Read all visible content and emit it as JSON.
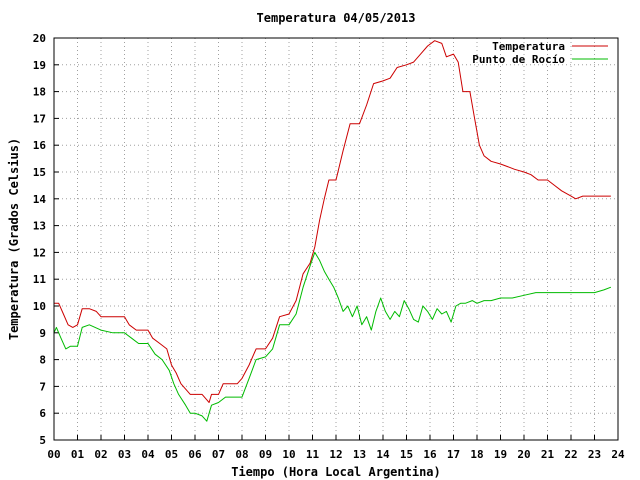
{
  "chart_data": {
    "type": "line",
    "title": "Temperatura 04/05/2013",
    "xlabel": "Tiempo (Hora Local Argentina)",
    "ylabel": "Temperatura (Grados Celsius)",
    "xlim": [
      0,
      24
    ],
    "ylim": [
      5,
      20
    ],
    "grid": true,
    "legend": "top-right",
    "x_ticks": [
      "00",
      "01",
      "02",
      "03",
      "04",
      "05",
      "06",
      "07",
      "08",
      "09",
      "10",
      "11",
      "12",
      "13",
      "14",
      "15",
      "16",
      "17",
      "18",
      "19",
      "20",
      "21",
      "22",
      "23",
      "24"
    ],
    "y_ticks": [
      "5",
      "6",
      "7",
      "8",
      "9",
      "10",
      "11",
      "12",
      "13",
      "14",
      "15",
      "16",
      "17",
      "18",
      "19",
      "20"
    ],
    "series": [
      {
        "name": "Temperatura",
        "color": "#cc0000",
        "points": [
          [
            0.0,
            10.1
          ],
          [
            0.2,
            10.1
          ],
          [
            0.4,
            9.7
          ],
          [
            0.6,
            9.3
          ],
          [
            0.8,
            9.2
          ],
          [
            1.0,
            9.3
          ],
          [
            1.2,
            9.9
          ],
          [
            1.5,
            9.9
          ],
          [
            1.8,
            9.8
          ],
          [
            2.0,
            9.6
          ],
          [
            2.5,
            9.6
          ],
          [
            3.0,
            9.6
          ],
          [
            3.2,
            9.3
          ],
          [
            3.5,
            9.1
          ],
          [
            4.0,
            9.1
          ],
          [
            4.2,
            8.8
          ],
          [
            4.5,
            8.6
          ],
          [
            4.8,
            8.4
          ],
          [
            5.0,
            7.8
          ],
          [
            5.2,
            7.5
          ],
          [
            5.4,
            7.1
          ],
          [
            5.6,
            6.9
          ],
          [
            5.8,
            6.7
          ],
          [
            6.0,
            6.7
          ],
          [
            6.3,
            6.7
          ],
          [
            6.5,
            6.5
          ],
          [
            6.6,
            6.4
          ],
          [
            6.7,
            6.7
          ],
          [
            7.0,
            6.7
          ],
          [
            7.2,
            7.1
          ],
          [
            7.5,
            7.1
          ],
          [
            7.8,
            7.1
          ],
          [
            8.0,
            7.3
          ],
          [
            8.3,
            7.8
          ],
          [
            8.6,
            8.4
          ],
          [
            9.0,
            8.4
          ],
          [
            9.3,
            8.8
          ],
          [
            9.6,
            9.6
          ],
          [
            10.0,
            9.7
          ],
          [
            10.3,
            10.2
          ],
          [
            10.6,
            11.2
          ],
          [
            10.9,
            11.6
          ],
          [
            11.1,
            12.2
          ],
          [
            11.3,
            13.2
          ],
          [
            11.5,
            14.0
          ],
          [
            11.7,
            14.7
          ],
          [
            12.0,
            14.7
          ],
          [
            12.3,
            15.8
          ],
          [
            12.6,
            16.8
          ],
          [
            13.0,
            16.8
          ],
          [
            13.3,
            17.5
          ],
          [
            13.6,
            18.3
          ],
          [
            14.0,
            18.4
          ],
          [
            14.3,
            18.5
          ],
          [
            14.6,
            18.9
          ],
          [
            15.0,
            19.0
          ],
          [
            15.3,
            19.1
          ],
          [
            15.6,
            19.4
          ],
          [
            15.9,
            19.7
          ],
          [
            16.2,
            19.9
          ],
          [
            16.5,
            19.8
          ],
          [
            16.7,
            19.3
          ],
          [
            17.0,
            19.4
          ],
          [
            17.2,
            19.1
          ],
          [
            17.4,
            18.0
          ],
          [
            17.7,
            18.0
          ],
          [
            17.9,
            17.0
          ],
          [
            18.1,
            16.0
          ],
          [
            18.3,
            15.6
          ],
          [
            18.6,
            15.4
          ],
          [
            19.0,
            15.3
          ],
          [
            19.3,
            15.2
          ],
          [
            19.6,
            15.1
          ],
          [
            20.0,
            15.0
          ],
          [
            20.3,
            14.9
          ],
          [
            20.6,
            14.7
          ],
          [
            21.0,
            14.7
          ],
          [
            21.3,
            14.5
          ],
          [
            21.6,
            14.3
          ],
          [
            22.0,
            14.1
          ],
          [
            22.2,
            14.0
          ],
          [
            22.5,
            14.1
          ],
          [
            23.0,
            14.1
          ],
          [
            23.4,
            14.1
          ],
          [
            23.7,
            14.1
          ]
        ]
      },
      {
        "name": "Punto de Rocío",
        "color": "#00bb00",
        "points": [
          [
            0.0,
            9.0
          ],
          [
            0.1,
            9.2
          ],
          [
            0.3,
            8.8
          ],
          [
            0.5,
            8.4
          ],
          [
            0.7,
            8.5
          ],
          [
            1.0,
            8.5
          ],
          [
            1.2,
            9.2
          ],
          [
            1.5,
            9.3
          ],
          [
            2.0,
            9.1
          ],
          [
            2.5,
            9.0
          ],
          [
            3.0,
            9.0
          ],
          [
            3.3,
            8.8
          ],
          [
            3.6,
            8.6
          ],
          [
            4.0,
            8.6
          ],
          [
            4.3,
            8.2
          ],
          [
            4.6,
            8.0
          ],
          [
            4.9,
            7.6
          ],
          [
            5.1,
            7.1
          ],
          [
            5.3,
            6.7
          ],
          [
            5.6,
            6.3
          ],
          [
            5.8,
            6.0
          ],
          [
            6.0,
            6.0
          ],
          [
            6.3,
            5.9
          ],
          [
            6.5,
            5.7
          ],
          [
            6.7,
            6.3
          ],
          [
            7.0,
            6.4
          ],
          [
            7.3,
            6.6
          ],
          [
            7.6,
            6.6
          ],
          [
            8.0,
            6.6
          ],
          [
            8.3,
            7.3
          ],
          [
            8.6,
            8.0
          ],
          [
            9.0,
            8.1
          ],
          [
            9.3,
            8.4
          ],
          [
            9.6,
            9.3
          ],
          [
            10.0,
            9.3
          ],
          [
            10.3,
            9.7
          ],
          [
            10.6,
            10.7
          ],
          [
            10.9,
            11.5
          ],
          [
            11.1,
            12.0
          ],
          [
            11.3,
            11.7
          ],
          [
            11.5,
            11.3
          ],
          [
            11.7,
            11.0
          ],
          [
            11.9,
            10.7
          ],
          [
            12.1,
            10.3
          ],
          [
            12.3,
            9.8
          ],
          [
            12.5,
            10.0
          ],
          [
            12.7,
            9.6
          ],
          [
            12.9,
            10.0
          ],
          [
            13.1,
            9.3
          ],
          [
            13.3,
            9.6
          ],
          [
            13.5,
            9.1
          ],
          [
            13.7,
            9.8
          ],
          [
            13.9,
            10.3
          ],
          [
            14.1,
            9.8
          ],
          [
            14.3,
            9.5
          ],
          [
            14.5,
            9.8
          ],
          [
            14.7,
            9.6
          ],
          [
            14.9,
            10.2
          ],
          [
            15.1,
            9.9
          ],
          [
            15.3,
            9.5
          ],
          [
            15.5,
            9.4
          ],
          [
            15.7,
            10.0
          ],
          [
            15.9,
            9.8
          ],
          [
            16.1,
            9.5
          ],
          [
            16.3,
            9.9
          ],
          [
            16.5,
            9.7
          ],
          [
            16.7,
            9.8
          ],
          [
            16.9,
            9.4
          ],
          [
            17.1,
            10.0
          ],
          [
            17.3,
            10.1
          ],
          [
            17.5,
            10.1
          ],
          [
            17.8,
            10.2
          ],
          [
            18.0,
            10.1
          ],
          [
            18.3,
            10.2
          ],
          [
            18.6,
            10.2
          ],
          [
            19.0,
            10.3
          ],
          [
            19.5,
            10.3
          ],
          [
            20.0,
            10.4
          ],
          [
            20.5,
            10.5
          ],
          [
            21.0,
            10.5
          ],
          [
            21.5,
            10.5
          ],
          [
            22.0,
            10.5
          ],
          [
            22.5,
            10.5
          ],
          [
            23.0,
            10.5
          ],
          [
            23.4,
            10.6
          ],
          [
            23.7,
            10.7
          ]
        ]
      }
    ]
  }
}
